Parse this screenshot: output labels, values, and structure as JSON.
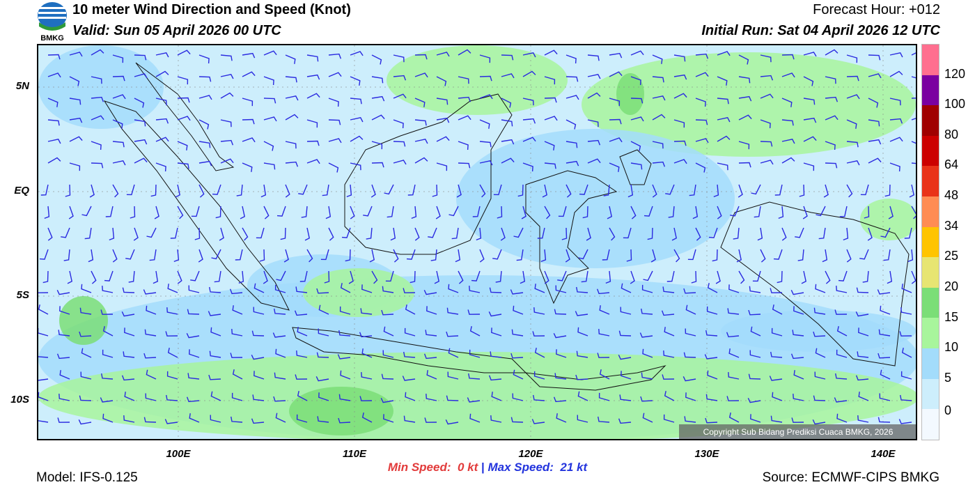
{
  "header": {
    "title": "10 meter Wind Direction and Speed (Knot)",
    "valid": "Valid: Sun 05 April 2026 00 UTC",
    "forecast_hour": "Forecast Hour: +012",
    "initial_run": "Initial Run: Sat 04 April 2026 12 UTC",
    "logo_text": "BMKG"
  },
  "axes": {
    "lat_labels": [
      "5N",
      "EQ",
      "5S",
      "10S"
    ],
    "lon_labels": [
      "100E",
      "110E",
      "120E",
      "130E",
      "140E"
    ]
  },
  "colorbar": {
    "labels": [
      "0",
      "5",
      "10",
      "15",
      "20",
      "25",
      "34",
      "48",
      "64",
      "80",
      "100",
      "120"
    ],
    "colors": [
      "#f3f9ff",
      "#cdeefc",
      "#a3dcfb",
      "#a8f59c",
      "#7bde77",
      "#e7e572",
      "#ffc400",
      "#ff8c53",
      "#e93319",
      "#cc0000",
      "#a00000",
      "#7a00a0",
      "#ff6f8f"
    ]
  },
  "copyright": "Copyright Sub Bidang Prediksi Cuaca BMKG, 2026",
  "speeds": {
    "min_label": "Min Speed:",
    "min_value": "0 kt",
    "separator": "|",
    "max_label": "Max Speed:",
    "max_value": "21 kt"
  },
  "footer": {
    "model": "Model: IFS-0.125",
    "source": "Source: ECMWF-CIPS BMKG"
  }
}
